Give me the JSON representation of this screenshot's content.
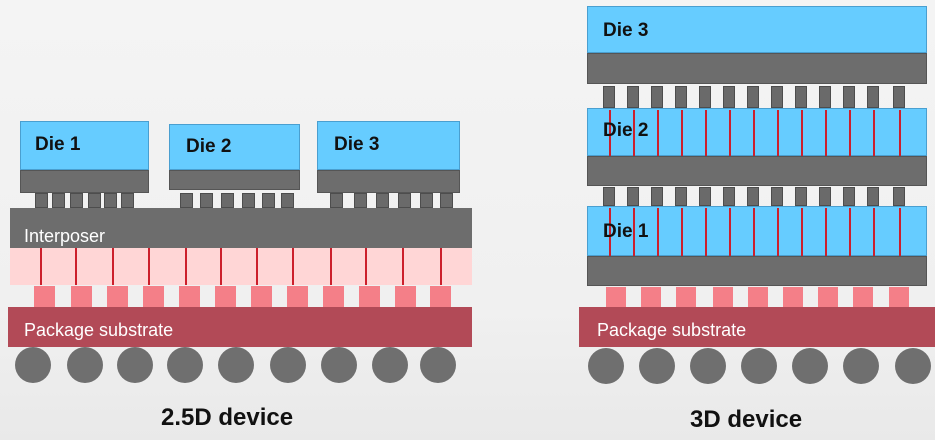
{
  "left": {
    "dies": [
      "Die 1",
      "Die 2",
      "Die 3"
    ],
    "interposer_label": "Interposer",
    "substrate_label": "Package substrate",
    "caption": "2.5D device"
  },
  "right": {
    "dies": [
      "Die 1",
      "Die 2",
      "Die 3"
    ],
    "substrate_label": "Package substrate",
    "caption": "3D device"
  },
  "colors": {
    "die": "#66ccff",
    "interposer": "#6d6d6d",
    "interposer_pink": "#ffd6d6",
    "via": "#cc1f2c",
    "substrate": "#b24a57",
    "bump": "#6a6a6a",
    "pink_bump": "#f47f88",
    "ball": "#6f6f6f"
  }
}
